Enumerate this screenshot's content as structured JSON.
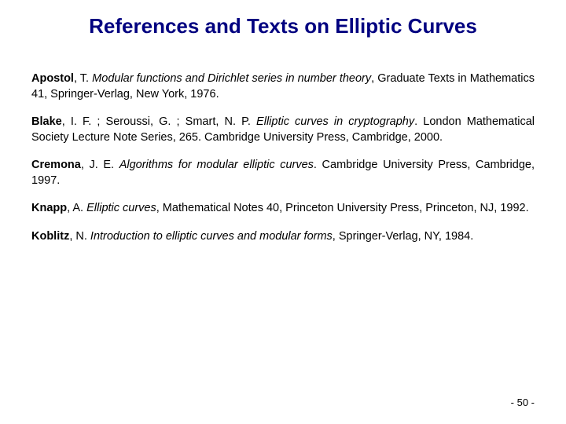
{
  "title": "References and Texts on Elliptic Curves",
  "title_color": "#000080",
  "background_color": "#ffffff",
  "text_color": "#000000",
  "references": [
    {
      "author": "Apostol",
      "rest_author": ", T. ",
      "title": "Modular functions and Dirichlet series in number theory",
      "tail": ", Graduate Texts in Mathematics 41, Springer-Verlag, New York, 1976."
    },
    {
      "author": "Blake",
      "rest_author": ", I. F. ; Seroussi, G. ; Smart, N. P. ",
      "title": "Elliptic curves in cryptography",
      "tail": ". London Mathematical Society Lecture Note Series, 265. Cambridge University Press, Cambridge, 2000."
    },
    {
      "author": "Cremona",
      "rest_author": ", J. E. ",
      "title": "Algorithms for modular elliptic curves",
      "tail": ". Cambridge University Press, Cambridge, 1997."
    },
    {
      "author": "Knapp",
      "rest_author": ", A. ",
      "title": "Elliptic curves",
      "tail": ", Mathematical Notes 40, Princeton University Press, Princeton, NJ, 1992."
    },
    {
      "author": "Koblitz",
      "rest_author": ", N. ",
      "title": "Introduction to elliptic curves and modular forms",
      "tail": ", Springer-Verlag, NY, 1984."
    }
  ],
  "page_number": "- 50 -"
}
